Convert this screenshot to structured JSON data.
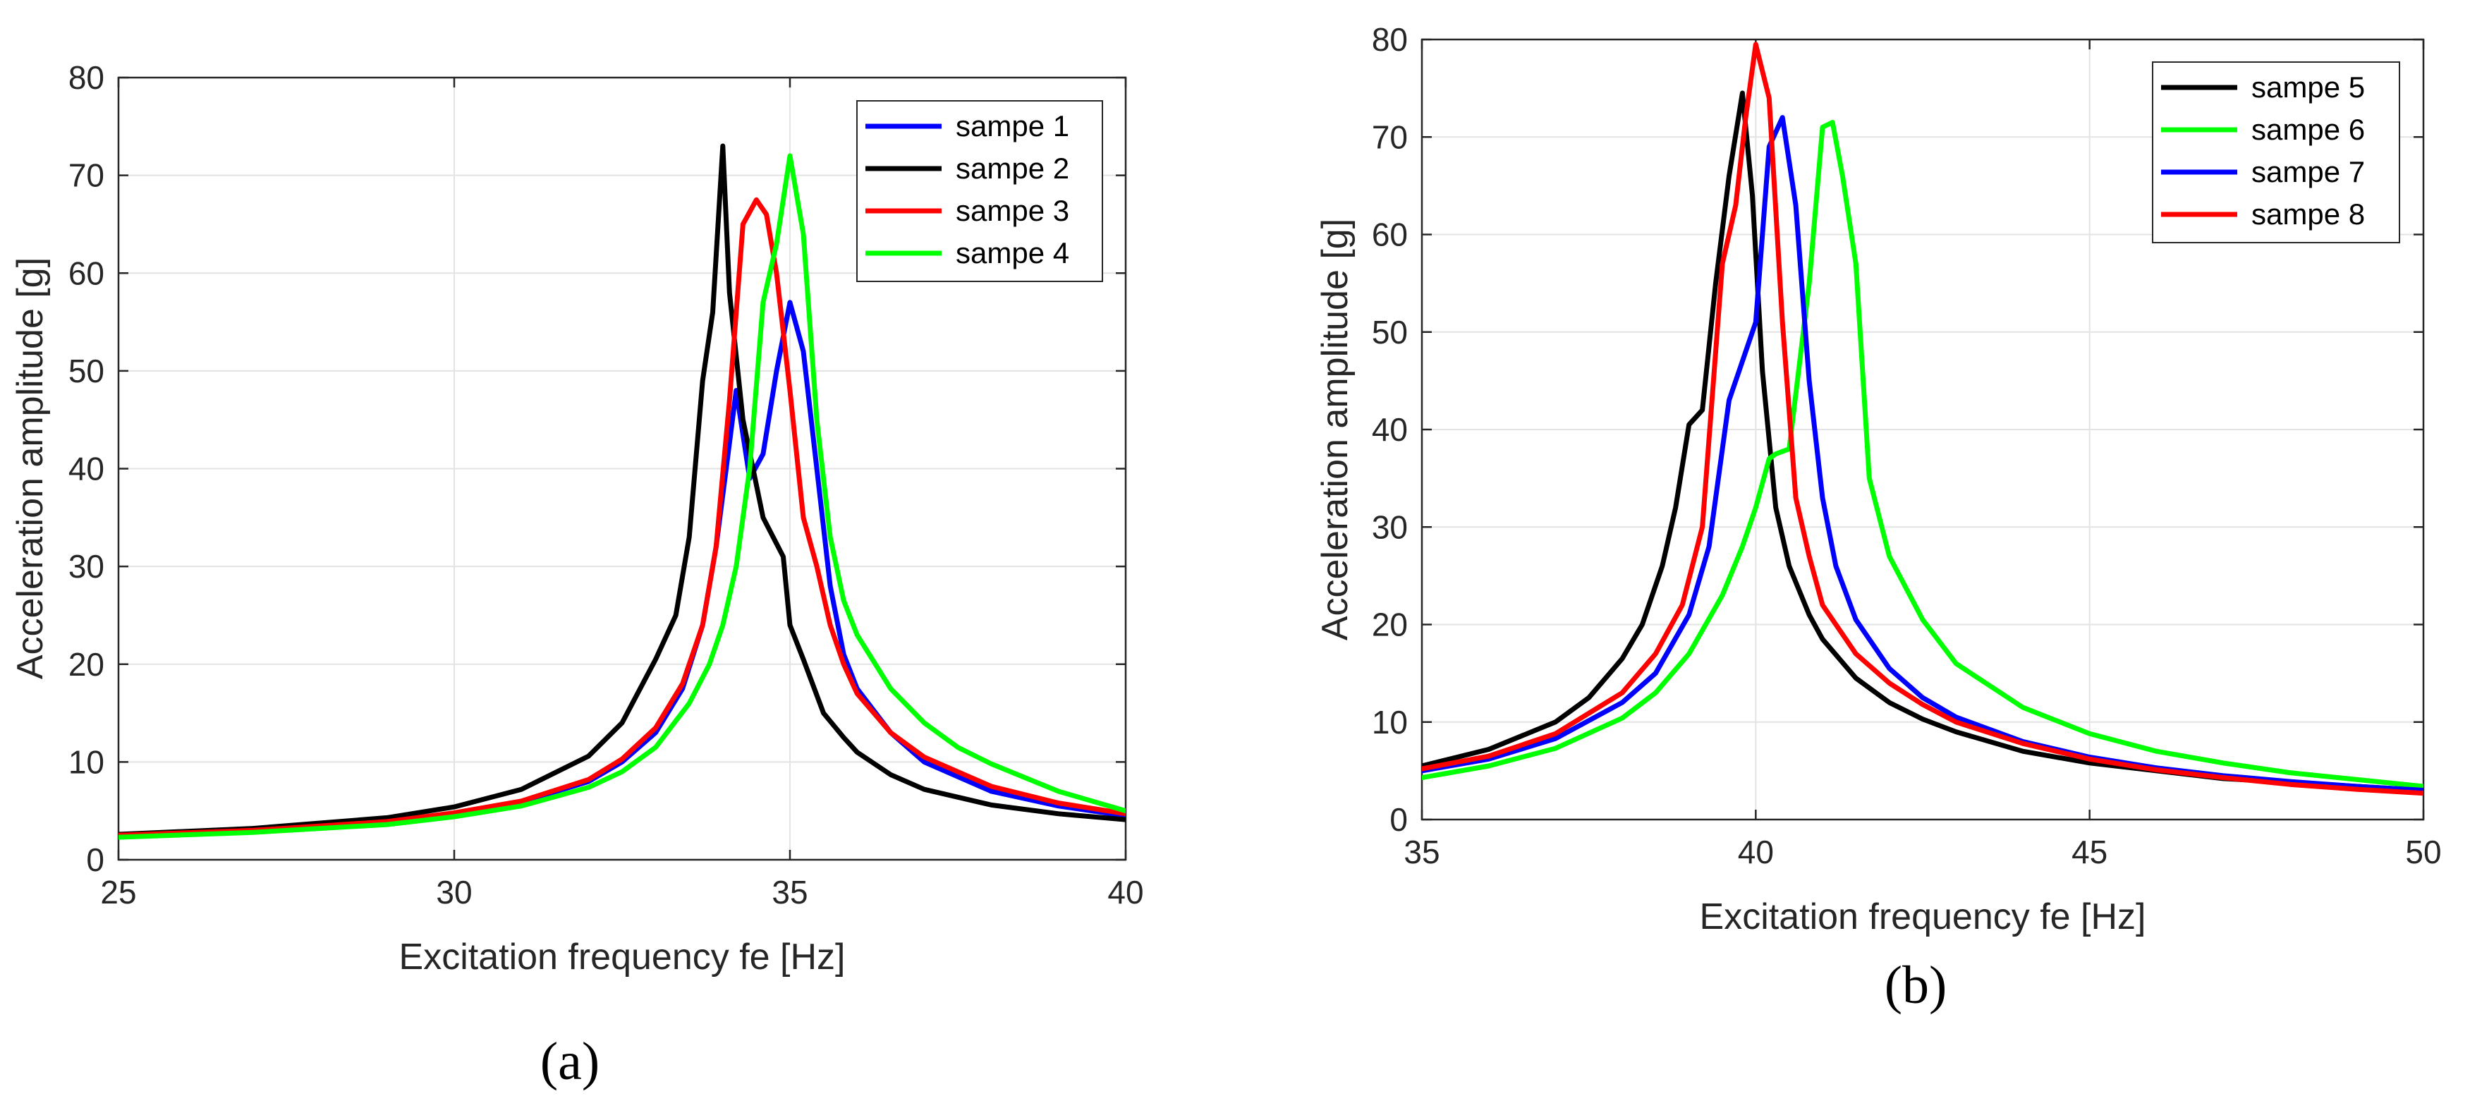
{
  "chart_data": [
    {
      "type": "line",
      "panel_label": "(a)",
      "title": "",
      "xlabel": "Excitation frequency fe [Hz]",
      "ylabel": "Acceleration amplitude [g]",
      "xlim": [
        25,
        40
      ],
      "ylim": [
        0,
        80
      ],
      "xticks": [
        25,
        30,
        35,
        40
      ],
      "yticks": [
        0,
        10,
        20,
        30,
        40,
        50,
        60,
        70,
        80
      ],
      "grid": true,
      "legend_position": "top-right",
      "series": [
        {
          "name": "sampe 1",
          "color": "#0000ff",
          "x": [
            25,
            27,
            29,
            30,
            31,
            32,
            32.5,
            33,
            33.4,
            33.7,
            33.9,
            34.05,
            34.2,
            34.4,
            34.6,
            34.8,
            35,
            35.2,
            35.4,
            35.6,
            35.8,
            36,
            36.5,
            37,
            38,
            39,
            40
          ],
          "y": [
            2.5,
            3.0,
            3.9,
            4.7,
            5.9,
            8.0,
            10.0,
            13.0,
            17.5,
            24.0,
            32.0,
            40.0,
            48.0,
            39.0,
            41.5,
            50.0,
            57.0,
            52.0,
            40.0,
            28.0,
            21.0,
            17.5,
            13.0,
            10.0,
            7.0,
            5.5,
            4.5
          ]
        },
        {
          "name": "sampe 2",
          "color": "#000000",
          "x": [
            25,
            27,
            29,
            30,
            31,
            32,
            32.5,
            33,
            33.3,
            33.5,
            33.7,
            33.85,
            34,
            34.1,
            34.3,
            34.6,
            34.9,
            35,
            35.2,
            35.5,
            35.8,
            36,
            36.5,
            37,
            38,
            39,
            40
          ],
          "y": [
            2.6,
            3.2,
            4.3,
            5.4,
            7.2,
            10.6,
            14.0,
            20.5,
            25.0,
            33.0,
            49.0,
            56.0,
            73.0,
            58.0,
            45.0,
            35.0,
            31.0,
            24.0,
            20.5,
            15.0,
            12.5,
            11.0,
            8.7,
            7.2,
            5.6,
            4.7,
            4.1
          ]
        },
        {
          "name": "sampe 3",
          "color": "#ff0000",
          "x": [
            25,
            27,
            29,
            30,
            31,
            32,
            32.5,
            33,
            33.4,
            33.7,
            33.9,
            34.1,
            34.3,
            34.5,
            34.65,
            34.8,
            35,
            35.2,
            35.4,
            35.6,
            35.8,
            36,
            36.5,
            37,
            38,
            39,
            40
          ],
          "y": [
            2.5,
            3.0,
            3.9,
            4.8,
            6.0,
            8.2,
            10.3,
            13.5,
            18.0,
            24.0,
            32.0,
            47.0,
            65.0,
            67.5,
            66.0,
            60.0,
            48.0,
            35.0,
            30.0,
            24.0,
            20.0,
            17.0,
            13.0,
            10.5,
            7.5,
            5.8,
            4.7
          ]
        },
        {
          "name": "sampe 4",
          "color": "#00ff00",
          "x": [
            25,
            27,
            29,
            30,
            31,
            32,
            32.5,
            33,
            33.5,
            33.8,
            34,
            34.2,
            34.4,
            34.6,
            34.8,
            35,
            35.2,
            35.4,
            35.6,
            35.8,
            36,
            36.5,
            37,
            37.5,
            38,
            39,
            40
          ],
          "y": [
            2.3,
            2.8,
            3.6,
            4.4,
            5.5,
            7.4,
            9.0,
            11.5,
            16.0,
            20.0,
            24.0,
            30.0,
            40.0,
            57.0,
            63.0,
            72.0,
            64.0,
            45.0,
            33.0,
            26.5,
            23.0,
            17.5,
            14.0,
            11.5,
            9.8,
            7.0,
            5.0
          ]
        }
      ]
    },
    {
      "type": "line",
      "panel_label": "(b)",
      "title": "",
      "xlabel": "Excitation frequency fe [Hz]",
      "ylabel": "Acceleration amplitude [g]",
      "xlim": [
        35,
        50
      ],
      "ylim": [
        0,
        80
      ],
      "xticks": [
        35,
        40,
        45,
        50
      ],
      "yticks": [
        0,
        10,
        20,
        30,
        40,
        50,
        60,
        70,
        80
      ],
      "grid": true,
      "legend_position": "top-right",
      "series": [
        {
          "name": "sampe 5",
          "color": "#000000",
          "x": [
            35,
            36,
            37,
            37.5,
            38,
            38.3,
            38.6,
            38.8,
            39,
            39.2,
            39.4,
            39.6,
            39.8,
            39.95,
            40.1,
            40.3,
            40.5,
            40.8,
            41,
            41.5,
            42,
            42.5,
            43,
            44,
            45,
            47,
            50
          ],
          "y": [
            5.5,
            7.2,
            10.0,
            12.5,
            16.5,
            20.0,
            26.0,
            32.0,
            40.5,
            42.0,
            55.0,
            66.0,
            74.5,
            64.0,
            46.0,
            32.0,
            26.0,
            21.0,
            18.5,
            14.5,
            12.0,
            10.3,
            9.0,
            7.0,
            5.8,
            4.2,
            3.0
          ]
        },
        {
          "name": "sampe 6",
          "color": "#00ff00",
          "x": [
            35,
            36,
            37,
            38,
            38.5,
            39,
            39.5,
            39.8,
            40,
            40.2,
            40.3,
            40.5,
            40.8,
            41,
            41.15,
            41.3,
            41.5,
            41.7,
            42,
            42.5,
            43,
            44,
            45,
            46,
            47,
            48,
            50
          ],
          "y": [
            4.3,
            5.5,
            7.3,
            10.4,
            13.0,
            17.0,
            23.0,
            28.0,
            32.0,
            37.0,
            37.5,
            38.0,
            55.0,
            71.0,
            71.5,
            66.0,
            57.0,
            35.0,
            27.0,
            20.5,
            16.0,
            11.5,
            8.8,
            7.0,
            5.8,
            4.8,
            3.4
          ]
        },
        {
          "name": "sampe 7",
          "color": "#0000ff",
          "x": [
            35,
            36,
            37,
            38,
            38.5,
            39,
            39.3,
            39.6,
            39.8,
            40,
            40.2,
            40.4,
            40.6,
            40.8,
            41,
            41.2,
            41.5,
            42,
            42.5,
            43,
            44,
            45,
            46,
            47,
            48,
            49,
            50
          ],
          "y": [
            5.0,
            6.2,
            8.3,
            12.0,
            15.0,
            21.0,
            28.0,
            43.0,
            47.0,
            51.0,
            69.0,
            72.0,
            63.0,
            45.0,
            33.0,
            26.0,
            20.5,
            15.5,
            12.5,
            10.5,
            8.0,
            6.4,
            5.3,
            4.5,
            3.9,
            3.4,
            3.0
          ]
        },
        {
          "name": "sampe 8",
          "color": "#ff0000",
          "x": [
            35,
            36,
            37,
            38,
            38.5,
            38.9,
            39.2,
            39.5,
            39.7,
            39.85,
            40,
            40.2,
            40.4,
            40.6,
            40.8,
            41,
            41.5,
            42,
            42.5,
            43,
            44,
            45,
            46,
            47,
            48,
            49,
            50
          ],
          "y": [
            5.2,
            6.5,
            8.8,
            13.0,
            17.0,
            22.0,
            30.0,
            57.0,
            63.0,
            72.0,
            79.5,
            74.0,
            51.0,
            33.0,
            27.0,
            22.0,
            17.0,
            14.0,
            11.8,
            10.0,
            7.8,
            6.2,
            5.1,
            4.3,
            3.6,
            3.1,
            2.7
          ]
        }
      ]
    }
  ]
}
